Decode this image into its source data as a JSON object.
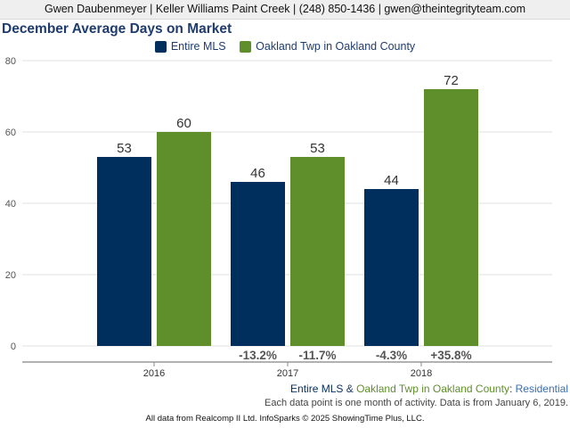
{
  "header": {
    "contact": "Gwen Daubenmeyer | Keller Williams Paint Creek | (248) 850-1436 | gwen@theintegrityteam.com"
  },
  "chart_data": {
    "type": "bar",
    "title": "December Average Days on Market",
    "categories": [
      "2016",
      "2017",
      "2018"
    ],
    "ylim": [
      0,
      80
    ],
    "yticks": [
      0,
      20,
      40,
      60,
      80
    ],
    "grid": true,
    "legend_position": "top",
    "series": [
      {
        "name": "Entire MLS",
        "color": "#002e5d",
        "values": [
          53,
          46,
          44
        ],
        "value_labels": [
          "53",
          "46",
          "44"
        ],
        "change_labels": [
          "",
          "-13.2%",
          "-4.3%"
        ]
      },
      {
        "name": "Oakland Twp in Oakland County",
        "color": "#5f8f2b",
        "values": [
          60,
          53,
          72
        ],
        "value_labels": [
          "60",
          "53",
          "72"
        ],
        "change_labels": [
          "",
          "-11.7%",
          "+35.8%"
        ]
      }
    ]
  },
  "footer": {
    "series_note": {
      "s1": "Entire MLS",
      "amp": " & ",
      "s2": "Oakland Twp in Oakland County",
      "colon": ": ",
      "type": "Residential"
    },
    "data_note": "Each data point is one month of activity. Data is from January 6, 2019.",
    "credit": "All data from Realcomp II Ltd. InfoSparks © 2025 ShowingTime Plus, LLC."
  }
}
